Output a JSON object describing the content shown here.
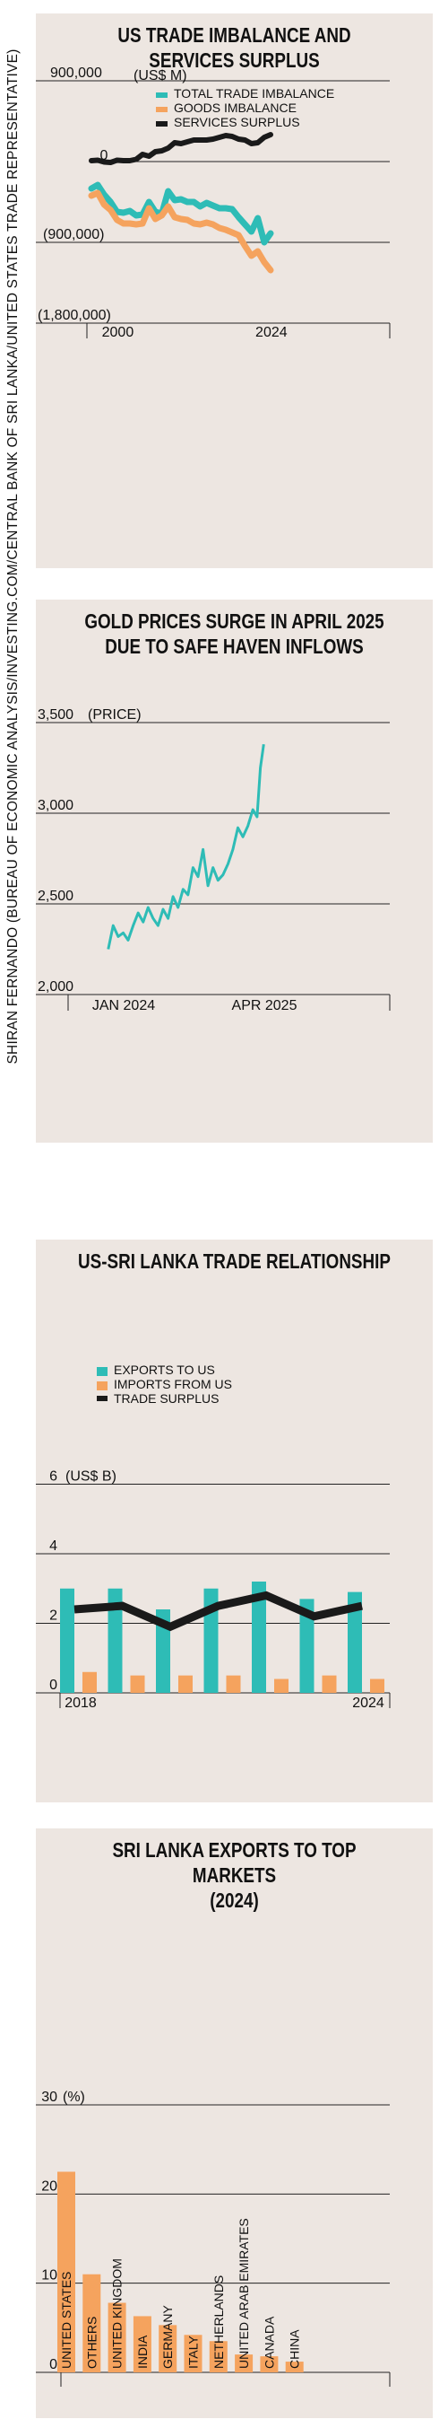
{
  "side_credit": "SHIRAN FERNANDO (BUREAU OF ECONOMIC ANALYSIS/INVESTING.COM/CENTRAL BANK OF SRI LANKA/UNITED STATES TRADE REPRESENTATIVE)",
  "colors": {
    "teal": "#2ebcb6",
    "orange": "#f5a35e",
    "black": "#1a1a1a",
    "panel": "#ede6e1"
  },
  "chart_data": [
    {
      "type": "line",
      "title_line1": "US TRADE IMBALANCE AND",
      "title_line2": "SERVICES SURPLUS",
      "unit": "(US$ M)",
      "yticks": [
        {
          "value": 900000,
          "label": "900,000"
        },
        {
          "value": 0,
          "label": "0"
        },
        {
          "value": -900000,
          "label": "(900,000)"
        },
        {
          "value": -1800000,
          "label": "(1,800,000)"
        }
      ],
      "ylim": [
        -1800000,
        900000
      ],
      "xlim": [
        1997,
        2025
      ],
      "xtick_labels": [
        {
          "value": 2000,
          "label": "2000"
        },
        {
          "value": 2024,
          "label": "2024"
        }
      ],
      "series": [
        {
          "name": "TOTAL TRADE IMBALANCE",
          "color": "#2ebcb6",
          "x": [
            1997,
            1998,
            1999,
            2000,
            2001,
            2002,
            2003,
            2004,
            2005,
            2006,
            2007,
            2008,
            2009,
            2010,
            2011,
            2012,
            2013,
            2014,
            2015,
            2016,
            2017,
            2018,
            2019,
            2020,
            2021,
            2022,
            2023,
            2024,
            2025
          ],
          "values": [
            -300000,
            -260000,
            -370000,
            -450000,
            -560000,
            -570000,
            -550000,
            -600000,
            -590000,
            -450000,
            -560000,
            -580000,
            -330000,
            -430000,
            -420000,
            -450000,
            -450000,
            -500000,
            -460000,
            -490000,
            -520000,
            -520000,
            -530000,
            -620000,
            -700000,
            -780000,
            -630000,
            -900000,
            -800000
          ]
        },
        {
          "name": "GOODS IMBALANCE",
          "color": "#f5a35e",
          "x": [
            1997,
            1998,
            1999,
            2000,
            2001,
            2002,
            2003,
            2004,
            2005,
            2006,
            2007,
            2008,
            2009,
            2010,
            2011,
            2012,
            2013,
            2014,
            2015,
            2016,
            2017,
            2018,
            2019,
            2020,
            2021,
            2022,
            2023,
            2024,
            2025
          ],
          "values": [
            -380000,
            -350000,
            -480000,
            -540000,
            -650000,
            -690000,
            -690000,
            -700000,
            -690000,
            -520000,
            -640000,
            -600000,
            -500000,
            -620000,
            -640000,
            -650000,
            -690000,
            -700000,
            -680000,
            -700000,
            -740000,
            -760000,
            -790000,
            -820000,
            -940000,
            -1050000,
            -1000000,
            -1120000,
            -1210000
          ]
        },
        {
          "name": "SERVICES SURPLUS",
          "color": "#1a1a1a",
          "x": [
            1997,
            1998,
            1999,
            2000,
            2001,
            2002,
            2003,
            2004,
            2005,
            2006,
            2007,
            2008,
            2009,
            2010,
            2011,
            2012,
            2013,
            2014,
            2015,
            2016,
            2017,
            2018,
            2019,
            2020,
            2021,
            2022,
            2023,
            2024,
            2025
          ],
          "values": [
            10000,
            15000,
            -5000,
            -10000,
            15000,
            10000,
            10000,
            25000,
            80000,
            60000,
            110000,
            120000,
            150000,
            210000,
            200000,
            220000,
            240000,
            240000,
            240000,
            250000,
            270000,
            290000,
            280000,
            250000,
            240000,
            200000,
            210000,
            270000,
            300000
          ]
        }
      ]
    },
    {
      "type": "line",
      "title_line1": "GOLD PRICES SURGE IN APRIL 2025",
      "title_line2": "DUE TO SAFE HAVEN INFLOWS",
      "unit": "(PRICE)",
      "yticks": [
        {
          "value": 3500,
          "label": "3,500"
        },
        {
          "value": 3000,
          "label": "3,000"
        },
        {
          "value": 2500,
          "label": "2,500"
        },
        {
          "value": 2000,
          "label": "2,000"
        }
      ],
      "ylim": [
        2000,
        3500
      ],
      "x": [
        "2024-01",
        "2024-02",
        "2024-03",
        "2024-04",
        "2024-05",
        "2024-06",
        "2024-07",
        "2024-08",
        "2024-09",
        "2024-10",
        "2024-11",
        "2024-12",
        "2025-01",
        "2025-02",
        "2025-03",
        "2025-04",
        "2025-05"
      ],
      "xtick_labels": [
        {
          "value": "2024-01",
          "label": "JAN 2024"
        },
        {
          "value": "2025-04",
          "label": "APR 2025"
        }
      ],
      "series": [
        {
          "name": "Gold price",
          "color": "#2ebcb6",
          "x": [
            "2024-01",
            "2024-01",
            "2024-02",
            "2024-02",
            "2024-03",
            "2024-03",
            "2024-04",
            "2024-04",
            "2024-05",
            "2024-05",
            "2024-06",
            "2024-06",
            "2024-07",
            "2024-07",
            "2024-08",
            "2024-08",
            "2024-09",
            "2024-09",
            "2024-10",
            "2024-10",
            "2024-11",
            "2024-11",
            "2024-12",
            "2024-12",
            "2025-01",
            "2025-01",
            "2025-02",
            "2025-02",
            "2025-03",
            "2025-03",
            "2025-04",
            "2025-04",
            "2025-04"
          ],
          "values": [
            2250,
            2380,
            2320,
            2340,
            2300,
            2380,
            2450,
            2400,
            2480,
            2420,
            2380,
            2470,
            2420,
            2540,
            2480,
            2580,
            2550,
            2700,
            2650,
            2800,
            2600,
            2700,
            2630,
            2660,
            2720,
            2800,
            2920,
            2870,
            2930,
            3020,
            2980,
            3250,
            3380
          ]
        }
      ]
    },
    {
      "type": "bar",
      "title": "US-SRI LANKA TRADE RELATIONSHIP",
      "unit": "(US$ B)",
      "yticks": [
        {
          "value": 6,
          "label": "6"
        },
        {
          "value": 4,
          "label": "4"
        },
        {
          "value": 2,
          "label": "2"
        },
        {
          "value": 0,
          "label": "0"
        }
      ],
      "ylim": [
        0,
        6
      ],
      "categories": [
        "2018",
        "2019",
        "2020",
        "2021",
        "2022",
        "2023",
        "2024"
      ],
      "xtick_labels": [
        {
          "value": "2018",
          "label": "2018"
        },
        {
          "value": "2024",
          "label": "2024"
        }
      ],
      "series": [
        {
          "name": "EXPORTS TO US",
          "color": "#2ebcb6",
          "values": [
            3.0,
            3.0,
            2.4,
            3.0,
            3.2,
            2.7,
            2.9
          ]
        },
        {
          "name": "IMPORTS FROM US",
          "color": "#f5a35e",
          "values": [
            0.6,
            0.5,
            0.5,
            0.5,
            0.4,
            0.5,
            0.4
          ]
        },
        {
          "name": "TRADE SURPLUS",
          "color": "#1a1a1a",
          "values": [
            2.4,
            2.5,
            1.9,
            2.5,
            2.8,
            2.2,
            2.5
          ]
        }
      ]
    },
    {
      "type": "bar",
      "title_line1": "SRI LANKA EXPORTS TO TOP MARKETS",
      "title_line2": "(2024)",
      "unit": "(%)",
      "yticks": [
        {
          "value": 30,
          "label": "30"
        },
        {
          "value": 20,
          "label": "20"
        },
        {
          "value": 10,
          "label": "10"
        },
        {
          "value": 0,
          "label": "0"
        }
      ],
      "ylim": [
        0,
        30
      ],
      "categories": [
        "UNITED STATES",
        "OTHERS",
        "UNITED KINGDOM",
        "INDIA",
        "GERMANY",
        "ITALY",
        "NETHERLANDS",
        "UNITED ARAB EMIRATES",
        "CANADA",
        "CHINA"
      ],
      "series": [
        {
          "name": "Share of exports",
          "color": "#f5a35e",
          "values": [
            22.5,
            11.0,
            7.8,
            6.3,
            5.3,
            4.2,
            3.5,
            2.0,
            1.8,
            1.2
          ]
        }
      ]
    }
  ]
}
